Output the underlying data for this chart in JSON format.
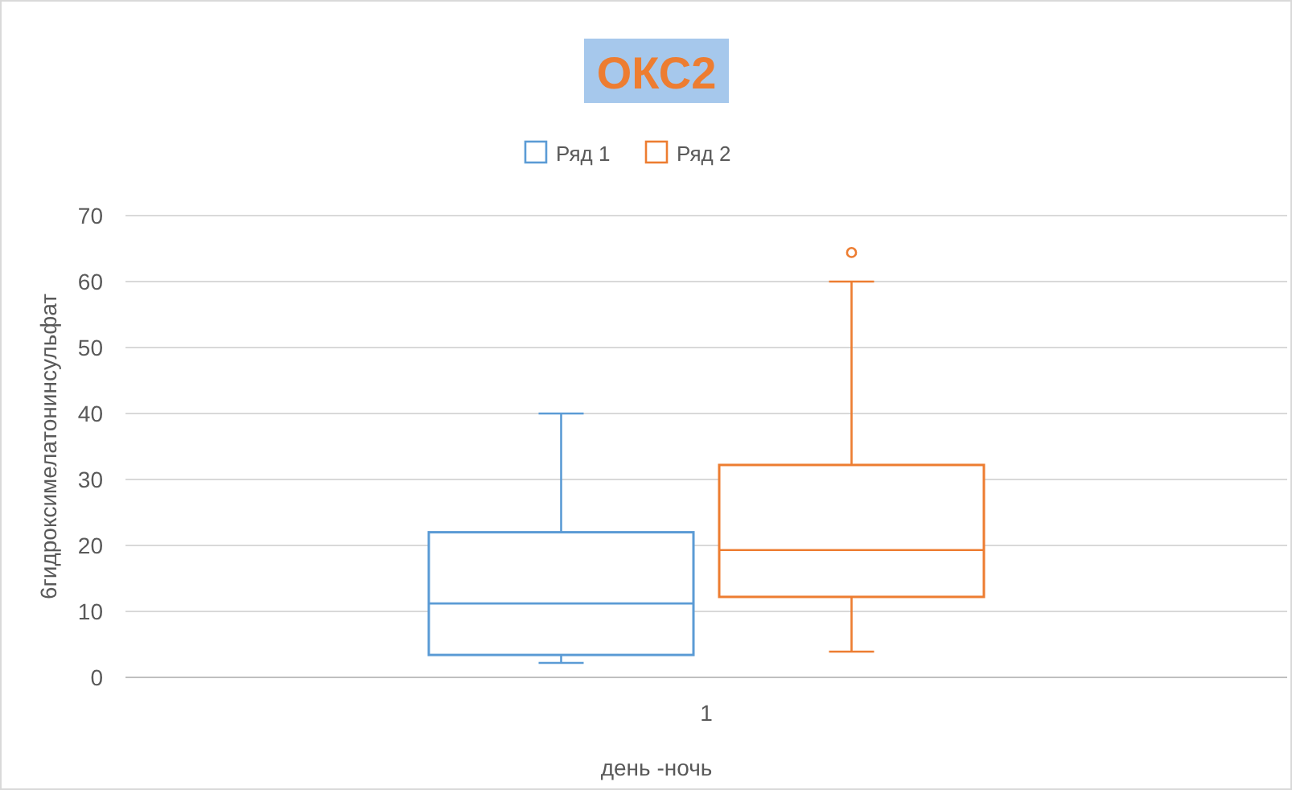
{
  "chart_data": {
    "type": "box",
    "title": "ОКС2",
    "xlabel": "день -ночь",
    "ylabel": "6гидроксимелатонинсульфат",
    "categories": [
      "1"
    ],
    "ylim": [
      0,
      70
    ],
    "yticks": [
      0,
      10,
      20,
      30,
      40,
      50,
      60,
      70
    ],
    "grid": "y",
    "legend": "top",
    "series": [
      {
        "name": "Ряд 1",
        "color": "#5b9bd5",
        "boxes": [
          {
            "low": 2.2,
            "q1": 3.4,
            "median": 11.2,
            "q3": 22,
            "high": 40
          }
        ]
      },
      {
        "name": "Ряд 2",
        "color": "#ed7d31",
        "boxes": [
          {
            "low": 3.9,
            "q1": 12.2,
            "median": 19.3,
            "q3": 32.2,
            "high": 60,
            "outliers": [
              64.4
            ]
          }
        ]
      }
    ]
  }
}
